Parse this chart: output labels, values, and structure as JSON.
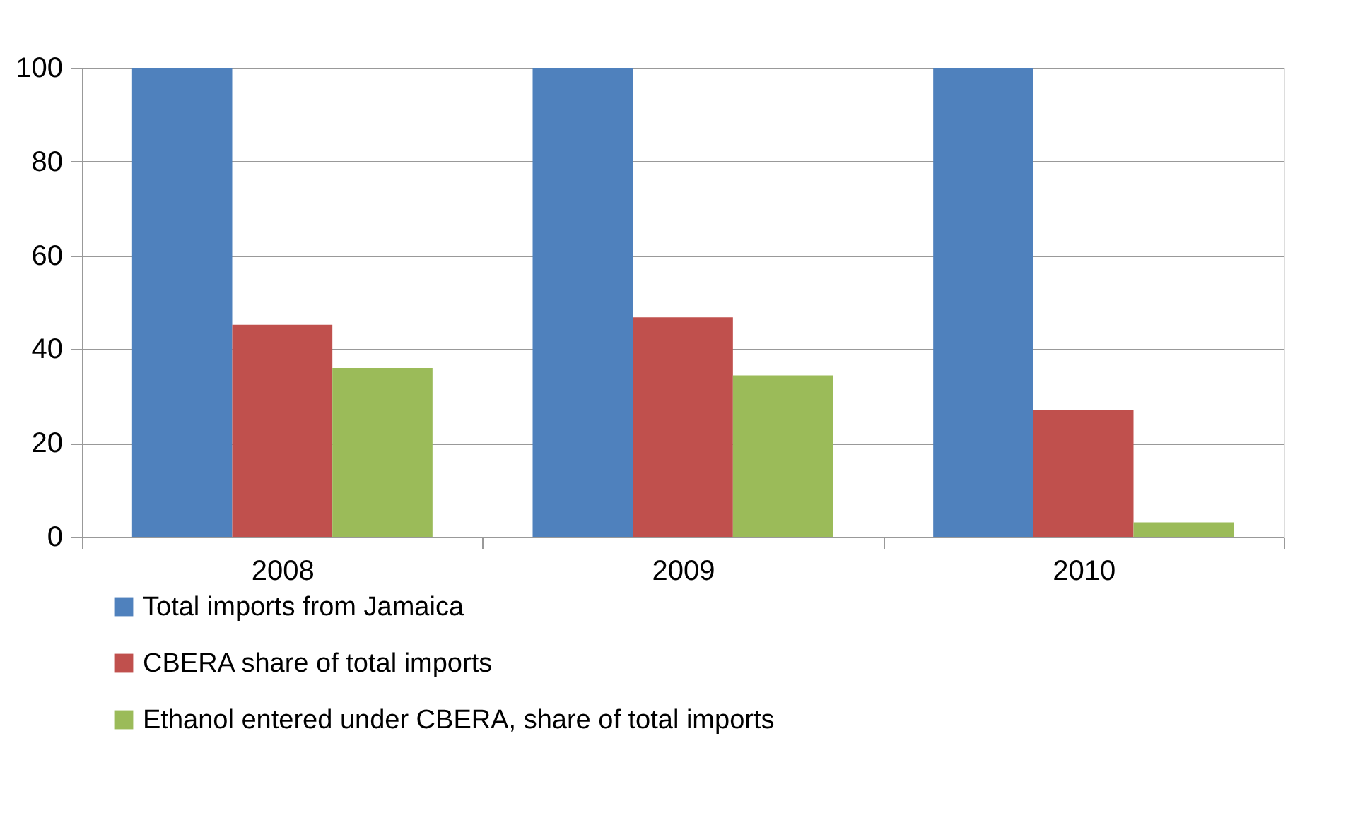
{
  "chart_data": {
    "type": "bar",
    "categories": [
      "2008",
      "2009",
      "2010"
    ],
    "series": [
      {
        "name": "Total imports from Jamaica",
        "color": "#4f81bd",
        "values": [
          100,
          100,
          100
        ]
      },
      {
        "name": "CBERA share of total imports",
        "color": "#c0504d",
        "values": [
          45.2,
          46.8,
          27.1
        ]
      },
      {
        "name": "Ethanol entered under CBERA, share of total imports",
        "color": "#9bbb59",
        "values": [
          36.0,
          34.4,
          3.1
        ]
      }
    ],
    "ylim": [
      0,
      100
    ],
    "yticks": [
      0,
      20,
      40,
      60,
      80,
      100
    ],
    "grid": "y",
    "legend": "bottom left"
  }
}
